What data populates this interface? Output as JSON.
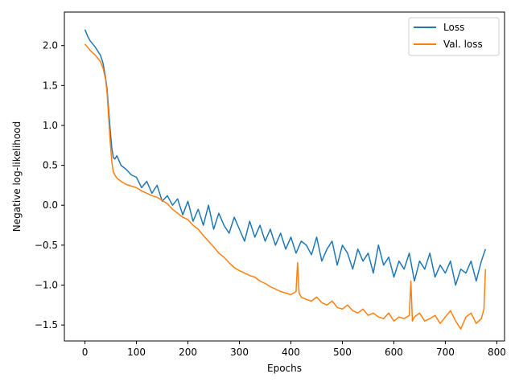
{
  "chart_data": {
    "type": "line",
    "title": "",
    "xlabel": "Epochs",
    "ylabel": "Negative log-likelihood",
    "xlim": [
      -40,
      815
    ],
    "ylim": [
      -1.7,
      2.42
    ],
    "xticks": [
      0,
      100,
      200,
      300,
      400,
      500,
      600,
      700,
      800
    ],
    "xtick_labels": [
      "0",
      "100",
      "200",
      "300",
      "400",
      "500",
      "600",
      "700",
      "800"
    ],
    "yticks": [
      -1.5,
      -1.0,
      -0.5,
      0.0,
      0.5,
      1.0,
      1.5,
      2.0
    ],
    "ytick_labels": [
      "−1.5",
      "−1.0",
      "−0.5",
      "0.0",
      "0.5",
      "1.0",
      "1.5",
      "2.0"
    ],
    "grid": false,
    "legend_position": "top-right",
    "series": [
      {
        "name": "Loss",
        "color": "#1f77b4",
        "x": [
          0,
          5,
          10,
          20,
          30,
          35,
          40,
          43,
          46,
          49,
          52,
          55,
          58,
          62,
          70,
          80,
          90,
          100,
          110,
          120,
          130,
          140,
          150,
          160,
          170,
          180,
          190,
          200,
          210,
          220,
          230,
          240,
          250,
          260,
          270,
          280,
          290,
          300,
          310,
          320,
          330,
          340,
          350,
          360,
          370,
          380,
          390,
          400,
          410,
          420,
          430,
          440,
          450,
          460,
          470,
          480,
          490,
          500,
          510,
          520,
          530,
          540,
          550,
          560,
          570,
          580,
          590,
          600,
          610,
          620,
          630,
          640,
          650,
          660,
          670,
          680,
          690,
          700,
          710,
          720,
          730,
          740,
          750,
          760,
          770,
          778
        ],
        "y": [
          2.2,
          2.12,
          2.06,
          1.98,
          1.88,
          1.78,
          1.6,
          1.45,
          1.2,
          0.95,
          0.72,
          0.6,
          0.58,
          0.62,
          0.5,
          0.45,
          0.38,
          0.35,
          0.22,
          0.3,
          0.15,
          0.25,
          0.05,
          0.12,
          0.0,
          0.08,
          -0.12,
          0.05,
          -0.2,
          -0.05,
          -0.25,
          0.0,
          -0.3,
          -0.1,
          -0.25,
          -0.35,
          -0.15,
          -0.3,
          -0.45,
          -0.2,
          -0.4,
          -0.25,
          -0.45,
          -0.3,
          -0.5,
          -0.35,
          -0.55,
          -0.4,
          -0.6,
          -0.45,
          -0.5,
          -0.62,
          -0.4,
          -0.7,
          -0.55,
          -0.45,
          -0.75,
          -0.5,
          -0.6,
          -0.8,
          -0.55,
          -0.7,
          -0.6,
          -0.85,
          -0.5,
          -0.75,
          -0.65,
          -0.9,
          -0.7,
          -0.8,
          -0.6,
          -0.95,
          -0.7,
          -0.8,
          -0.6,
          -0.9,
          -0.75,
          -0.85,
          -0.7,
          -1.0,
          -0.8,
          -0.85,
          -0.7,
          -0.95,
          -0.7,
          -0.55
        ]
      },
      {
        "name": "Val. loss",
        "color": "#ff7f0e",
        "x": [
          0,
          5,
          10,
          20,
          30,
          35,
          40,
          43,
          46,
          49,
          52,
          55,
          58,
          62,
          70,
          80,
          90,
          100,
          110,
          120,
          130,
          140,
          150,
          160,
          170,
          180,
          190,
          200,
          210,
          220,
          230,
          240,
          250,
          260,
          270,
          280,
          290,
          300,
          310,
          320,
          330,
          340,
          350,
          360,
          370,
          380,
          390,
          400,
          410,
          413,
          416,
          420,
          430,
          440,
          450,
          460,
          470,
          480,
          490,
          500,
          510,
          520,
          530,
          540,
          550,
          560,
          570,
          580,
          590,
          600,
          610,
          620,
          630,
          633,
          636,
          640,
          650,
          660,
          670,
          680,
          690,
          700,
          710,
          720,
          730,
          740,
          750,
          760,
          770,
          775,
          778
        ],
        "y": [
          2.02,
          1.98,
          1.94,
          1.88,
          1.8,
          1.72,
          1.58,
          1.4,
          1.1,
          0.8,
          0.55,
          0.42,
          0.38,
          0.34,
          0.3,
          0.26,
          0.24,
          0.22,
          0.18,
          0.15,
          0.12,
          0.1,
          0.06,
          0.02,
          -0.05,
          -0.1,
          -0.15,
          -0.18,
          -0.25,
          -0.3,
          -0.38,
          -0.45,
          -0.52,
          -0.6,
          -0.65,
          -0.72,
          -0.78,
          -0.82,
          -0.85,
          -0.88,
          -0.9,
          -0.95,
          -0.98,
          -1.02,
          -1.05,
          -1.08,
          -1.1,
          -1.12,
          -1.08,
          -0.72,
          -1.1,
          -1.15,
          -1.18,
          -1.2,
          -1.15,
          -1.22,
          -1.25,
          -1.2,
          -1.28,
          -1.3,
          -1.25,
          -1.32,
          -1.35,
          -1.3,
          -1.38,
          -1.35,
          -1.4,
          -1.42,
          -1.35,
          -1.45,
          -1.4,
          -1.42,
          -1.38,
          -0.95,
          -1.45,
          -1.4,
          -1.35,
          -1.45,
          -1.42,
          -1.38,
          -1.48,
          -1.4,
          -1.32,
          -1.45,
          -1.55,
          -1.4,
          -1.35,
          -1.48,
          -1.42,
          -1.3,
          -0.8
        ]
      }
    ]
  }
}
